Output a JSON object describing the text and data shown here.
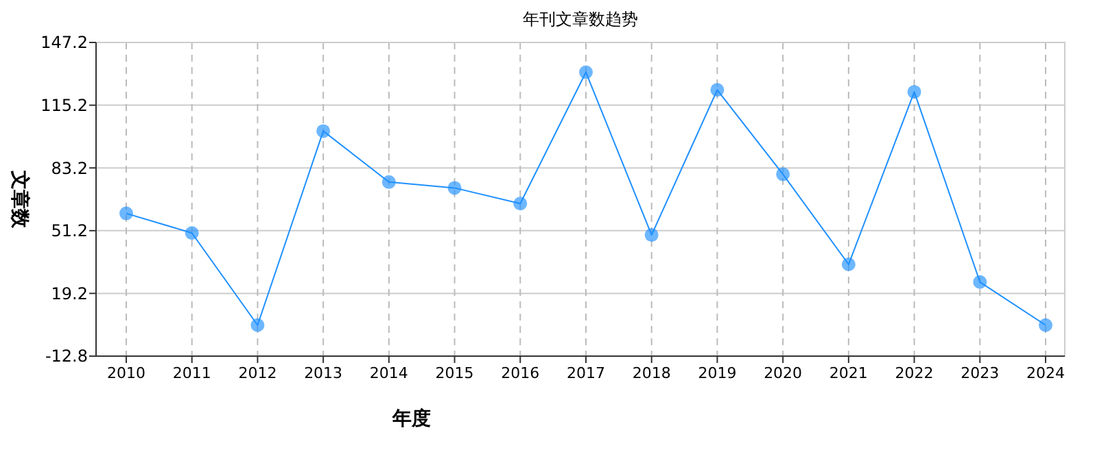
{
  "chart_data": {
    "type": "line",
    "title": "年刊文章数趋势",
    "xlabel": "年度",
    "ylabel": "文章数",
    "categories": [
      "2010",
      "2011",
      "2012",
      "2013",
      "2014",
      "2015",
      "2016",
      "2017",
      "2018",
      "2019",
      "2020",
      "2021",
      "2022",
      "2023",
      "2024"
    ],
    "series": [
      {
        "color": "#1e90ff",
        "values": [
          60,
          50,
          3,
          102,
          76,
          73,
          65,
          132,
          49,
          123,
          80,
          34,
          122,
          25,
          3
        ]
      }
    ],
    "ylim": [
      -12.8,
      147.2
    ],
    "yticks": [
      -12.8,
      19.2,
      51.2,
      83.2,
      115.2,
      147.2
    ],
    "grid": true,
    "marker": "circle",
    "line_style": "solid"
  }
}
